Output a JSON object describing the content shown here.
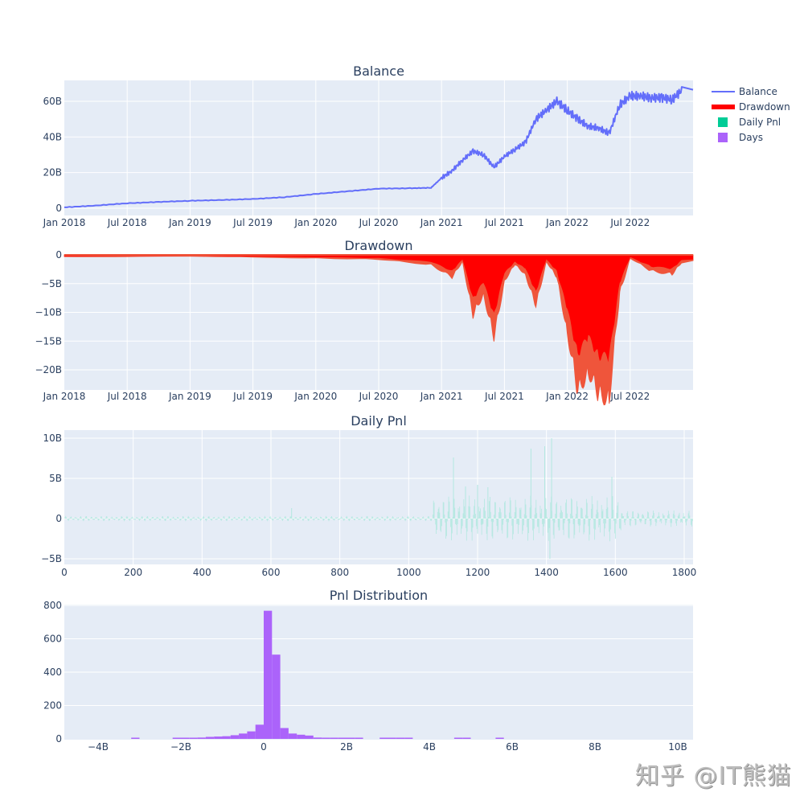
{
  "figure": {
    "background": "#ffffff",
    "plot_background": "#e5ecf6",
    "grid_color": "#ffffff",
    "watermark": "知乎 @IT熊猫"
  },
  "legend": {
    "items": [
      {
        "label": "Balance",
        "color": "#636efa",
        "kind": "line"
      },
      {
        "label": "Drawdown",
        "color": "#ff0000",
        "kind": "thick-line"
      },
      {
        "label": "Daily Pnl",
        "color": "#00cc96",
        "kind": "square"
      },
      {
        "label": "Days",
        "color": "#ab63fa",
        "kind": "square"
      }
    ]
  },
  "chart_data": [
    {
      "type": "line",
      "title": "Balance",
      "xlabel": "",
      "ylabel": "",
      "series_name": "Balance",
      "color": "#636efa",
      "x_ticks": [
        "Jan 2018",
        "Jul 2018",
        "Jan 2019",
        "Jul 2019",
        "Jan 2020",
        "Jul 2020",
        "Jan 2021",
        "Jul 2021",
        "Jan 2022",
        "Jul 2022"
      ],
      "y_ticks": [
        "0",
        "20B",
        "40B",
        "60B"
      ],
      "ylim": [
        -2000000000.0,
        71000000000.0
      ],
      "grid": true,
      "x": [
        "2018-01",
        "2018-04",
        "2018-07",
        "2018-10",
        "2019-01",
        "2019-04",
        "2019-07",
        "2019-10",
        "2020-01",
        "2020-04",
        "2020-07",
        "2020-10",
        "2020-12",
        "2021-01",
        "2021-02",
        "2021-03",
        "2021-04",
        "2021-05",
        "2021-06",
        "2021-07",
        "2021-08",
        "2021-09",
        "2021-10",
        "2021-11",
        "2021-12",
        "2022-01",
        "2022-02",
        "2022-03",
        "2022-04",
        "2022-05",
        "2022-06",
        "2022-07",
        "2022-08",
        "2022-09",
        "2022-10",
        "2022-11",
        "2022-12"
      ],
      "values_billion": [
        0.5,
        1.5,
        2.8,
        3.5,
        4.2,
        4.6,
        5.2,
        6.2,
        8.0,
        9.5,
        11.0,
        11.2,
        11.5,
        17.0,
        21.0,
        27.0,
        32.0,
        30.0,
        23.0,
        29.0,
        33.0,
        37.0,
        50.0,
        55.0,
        60.0,
        55.0,
        50.0,
        46.0,
        45.0,
        42.0,
        58.0,
        63.0,
        63.0,
        62.0,
        62.0,
        61.0,
        66.5
      ]
    },
    {
      "type": "area",
      "title": "Drawdown",
      "series_name": "Drawdown",
      "color": "#ff0000",
      "x_ticks": [
        "Jan 2018",
        "Jul 2018",
        "Jan 2019",
        "Jul 2019",
        "Jan 2020",
        "Jul 2020",
        "Jan 2021",
        "Jul 2021",
        "Jan 2022",
        "Jul 2022"
      ],
      "y_ticks": [
        "0",
        "−5B",
        "−10B",
        "−15B",
        "−20B"
      ],
      "ylim": [
        -23500000000.0,
        0
      ],
      "grid": true,
      "x": [
        "2018-01",
        "2019-01",
        "2020-01",
        "2020-07",
        "2020-12",
        "2021-02",
        "2021-03",
        "2021-04",
        "2021-05",
        "2021-06",
        "2021-07",
        "2021-08",
        "2021-09",
        "2021-10",
        "2021-11",
        "2021-12",
        "2022-01",
        "2022-02",
        "2022-03",
        "2022-04",
        "2022-05",
        "2022-06",
        "2022-07",
        "2022-09",
        "2022-11",
        "2022-12"
      ],
      "values_billion": [
        -0.3,
        -0.2,
        -0.5,
        -0.7,
        -1.5,
        -3.5,
        -1.0,
        -9.5,
        -6.0,
        -13.0,
        -4.0,
        -1.5,
        -3.0,
        -8.0,
        -1.0,
        -3.5,
        -12.0,
        -21.5,
        -18.0,
        -22.0,
        -22.3,
        -6.0,
        -0.5,
        -2.5,
        -3.0,
        -1.0
      ],
      "min_value_billion": -22.3
    },
    {
      "type": "bar",
      "title": "Daily Pnl",
      "series_name": "Daily Pnl",
      "color": "#00cc96",
      "x_ticks": [
        "0",
        "200",
        "400",
        "600",
        "800",
        "1000",
        "1200",
        "1400",
        "1600",
        "1800"
      ],
      "y_ticks": [
        "−5B",
        "0",
        "5B",
        "10B"
      ],
      "xlim": [
        0,
        1825
      ],
      "ylim": [
        -5500000000.0,
        11000000000.0
      ],
      "grid": true,
      "notable_spikes": [
        {
          "x": 660,
          "value_billion": 1.3
        },
        {
          "x": 1130,
          "value_billion": 7.6
        },
        {
          "x": 1165,
          "value_billion": 4.0
        },
        {
          "x": 1200,
          "value_billion": 4.2
        },
        {
          "x": 1230,
          "value_billion": 3.9
        },
        {
          "x": 1355,
          "value_billion": 8.7
        },
        {
          "x": 1395,
          "value_billion": 9.0
        },
        {
          "x": 1415,
          "value_billion": 10.0
        },
        {
          "x": 1410,
          "value_billion": -5.0
        },
        {
          "x": 1590,
          "value_billion": 5.2
        }
      ]
    },
    {
      "type": "bar",
      "title": "Pnl Distribution",
      "series_name": "Days",
      "color": "#ab63fa",
      "x_ticks": [
        "−4B",
        "−2B",
        "0",
        "2B",
        "4B",
        "6B",
        "8B",
        "10B"
      ],
      "y_ticks": [
        "0",
        "200",
        "400",
        "600",
        "800"
      ],
      "xlim": [
        -4800000000.0,
        10400000000.0
      ],
      "ylim": [
        0,
        805
      ],
      "grid": true,
      "bin_width_billion": 0.2,
      "bins_start_billion": [
        -3.2,
        -2.2,
        -2.0,
        -1.8,
        -1.6,
        -1.4,
        -1.2,
        -1.0,
        -0.8,
        -0.6,
        -0.4,
        -0.2,
        0.0,
        0.2,
        0.4,
        0.6,
        0.8,
        1.0,
        1.2,
        1.4,
        1.6,
        1.8,
        2.0,
        2.2,
        2.8,
        3.0,
        3.2,
        3.4,
        4.6,
        4.8,
        5.6
      ],
      "counts": [
        2,
        4,
        4,
        4,
        8,
        12,
        14,
        16,
        22,
        32,
        45,
        85,
        768,
        505,
        65,
        32,
        25,
        20,
        8,
        6,
        6,
        6,
        4,
        2,
        3,
        3,
        3,
        3,
        2,
        2,
        2
      ]
    }
  ]
}
